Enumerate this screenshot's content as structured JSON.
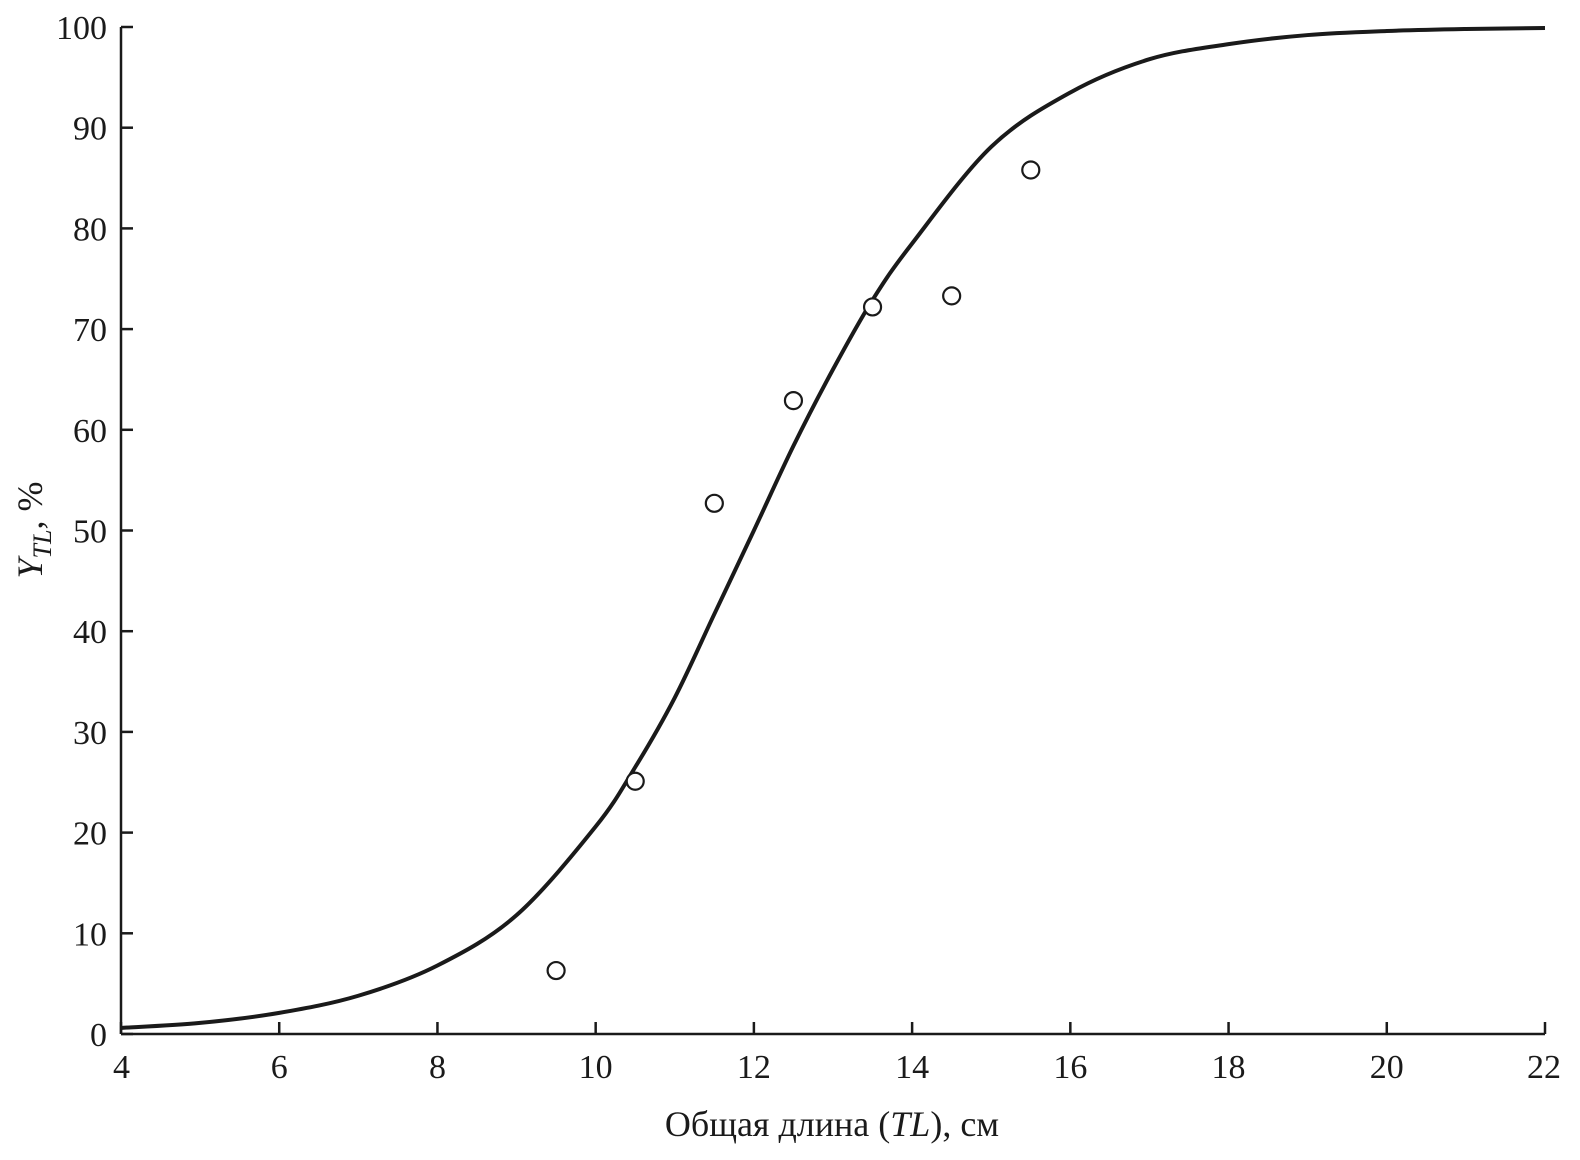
{
  "chart_data": {
    "type": "scatter",
    "title": "",
    "xlabel_parts": [
      "Общая длина (",
      "TL",
      "), см"
    ],
    "ylabel_parts": [
      "Y",
      "TL",
      ", %"
    ],
    "xlim": [
      4,
      22
    ],
    "ylim": [
      0,
      100
    ],
    "xticks": [
      4,
      6,
      8,
      10,
      12,
      14,
      16,
      18,
      20,
      22
    ],
    "yticks": [
      0,
      10,
      20,
      30,
      40,
      50,
      60,
      70,
      80,
      90,
      100
    ],
    "grid": false,
    "legend": "none",
    "series": [
      {
        "kind": "scatter",
        "marker": "open-circle",
        "x": [
          9.5,
          10.5,
          11.5,
          12.5,
          13.5,
          14.5,
          15.5
        ],
        "y": [
          6.3,
          25.1,
          52.7,
          62.9,
          72.2,
          73.3,
          85.8
        ]
      },
      {
        "kind": "line",
        "x": [
          4,
          5,
          6,
          7,
          8,
          9,
          10,
          10.5,
          11,
          11.5,
          12,
          12.5,
          13,
          13.5,
          14,
          15,
          16,
          17,
          18,
          19,
          20,
          21,
          22
        ],
        "y": [
          0.6,
          1.1,
          2.1,
          3.8,
          6.8,
          11.8,
          20.6,
          26.5,
          33.4,
          41.7,
          50.0,
          58.4,
          66.0,
          72.9,
          78.5,
          88.1,
          93.5,
          96.8,
          98.3,
          99.2,
          99.6,
          99.8,
          99.9
        ]
      }
    ]
  }
}
